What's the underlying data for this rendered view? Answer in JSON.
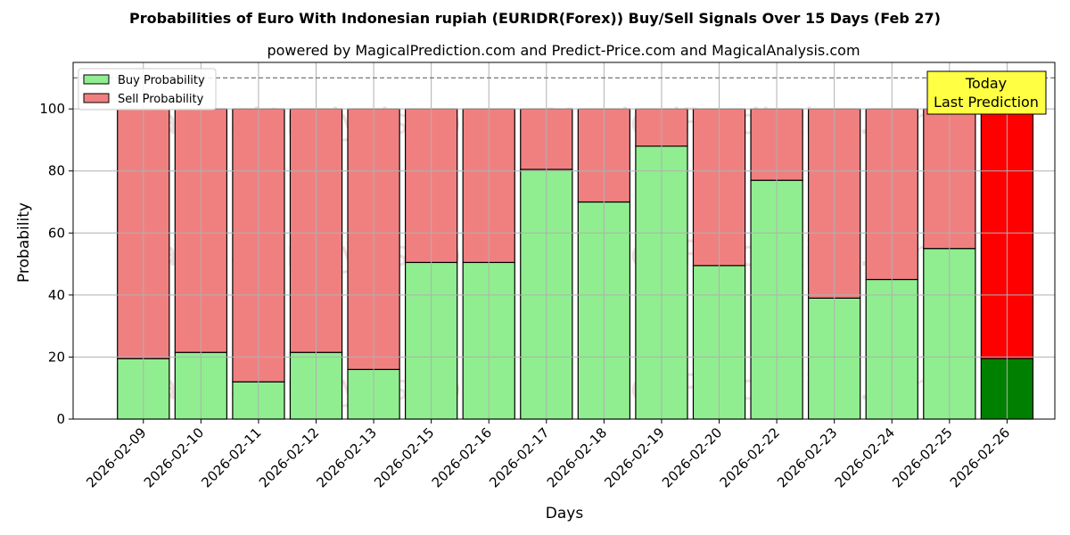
{
  "chart_data": {
    "type": "bar",
    "stacked": true,
    "title": "Probabilities of Euro With Indonesian rupiah (EURIDR(Forex)) Buy/Sell Signals Over 15 Days (Feb 27)",
    "subtitle": "powered by MagicalPrediction.com and Predict-Price.com and MagicalAnalysis.com",
    "xlabel": "Days",
    "ylabel": "Probability",
    "ylim": [
      0,
      115
    ],
    "yticks": [
      0,
      20,
      40,
      60,
      80,
      100
    ],
    "reference_line": 110,
    "grid": true,
    "legend_position": "top-left",
    "categories": [
      "2026-02-09",
      "2026-02-10",
      "2026-02-11",
      "2026-02-12",
      "2026-02-13",
      "2026-02-15",
      "2026-02-16",
      "2026-02-17",
      "2026-02-18",
      "2026-02-19",
      "2026-02-20",
      "2026-02-22",
      "2026-02-23",
      "2026-02-24",
      "2026-02-25",
      "2026-02-26"
    ],
    "series": [
      {
        "name": "Buy Probability",
        "color": "#90ee90",
        "highlight_color": "#008000",
        "values": [
          19.5,
          21.5,
          12,
          21.5,
          16,
          50.5,
          50.5,
          80.5,
          70,
          88,
          49.5,
          77,
          39,
          45,
          55,
          19.5
        ]
      },
      {
        "name": "Sell Probability",
        "color": "#f08080",
        "highlight_color": "#ff0000",
        "values": [
          80.5,
          78.5,
          88,
          78.5,
          84,
          49.5,
          49.5,
          19.5,
          30,
          12,
          50.5,
          23,
          61,
          55,
          45,
          80.5
        ]
      }
    ],
    "highlight_index": 15,
    "annotation": {
      "lines": [
        "Today",
        "Last Prediction"
      ],
      "color": "#ffff44"
    },
    "watermarks": [
      "MagicalAnalysis.com",
      "MagicalPrediction.com"
    ]
  }
}
